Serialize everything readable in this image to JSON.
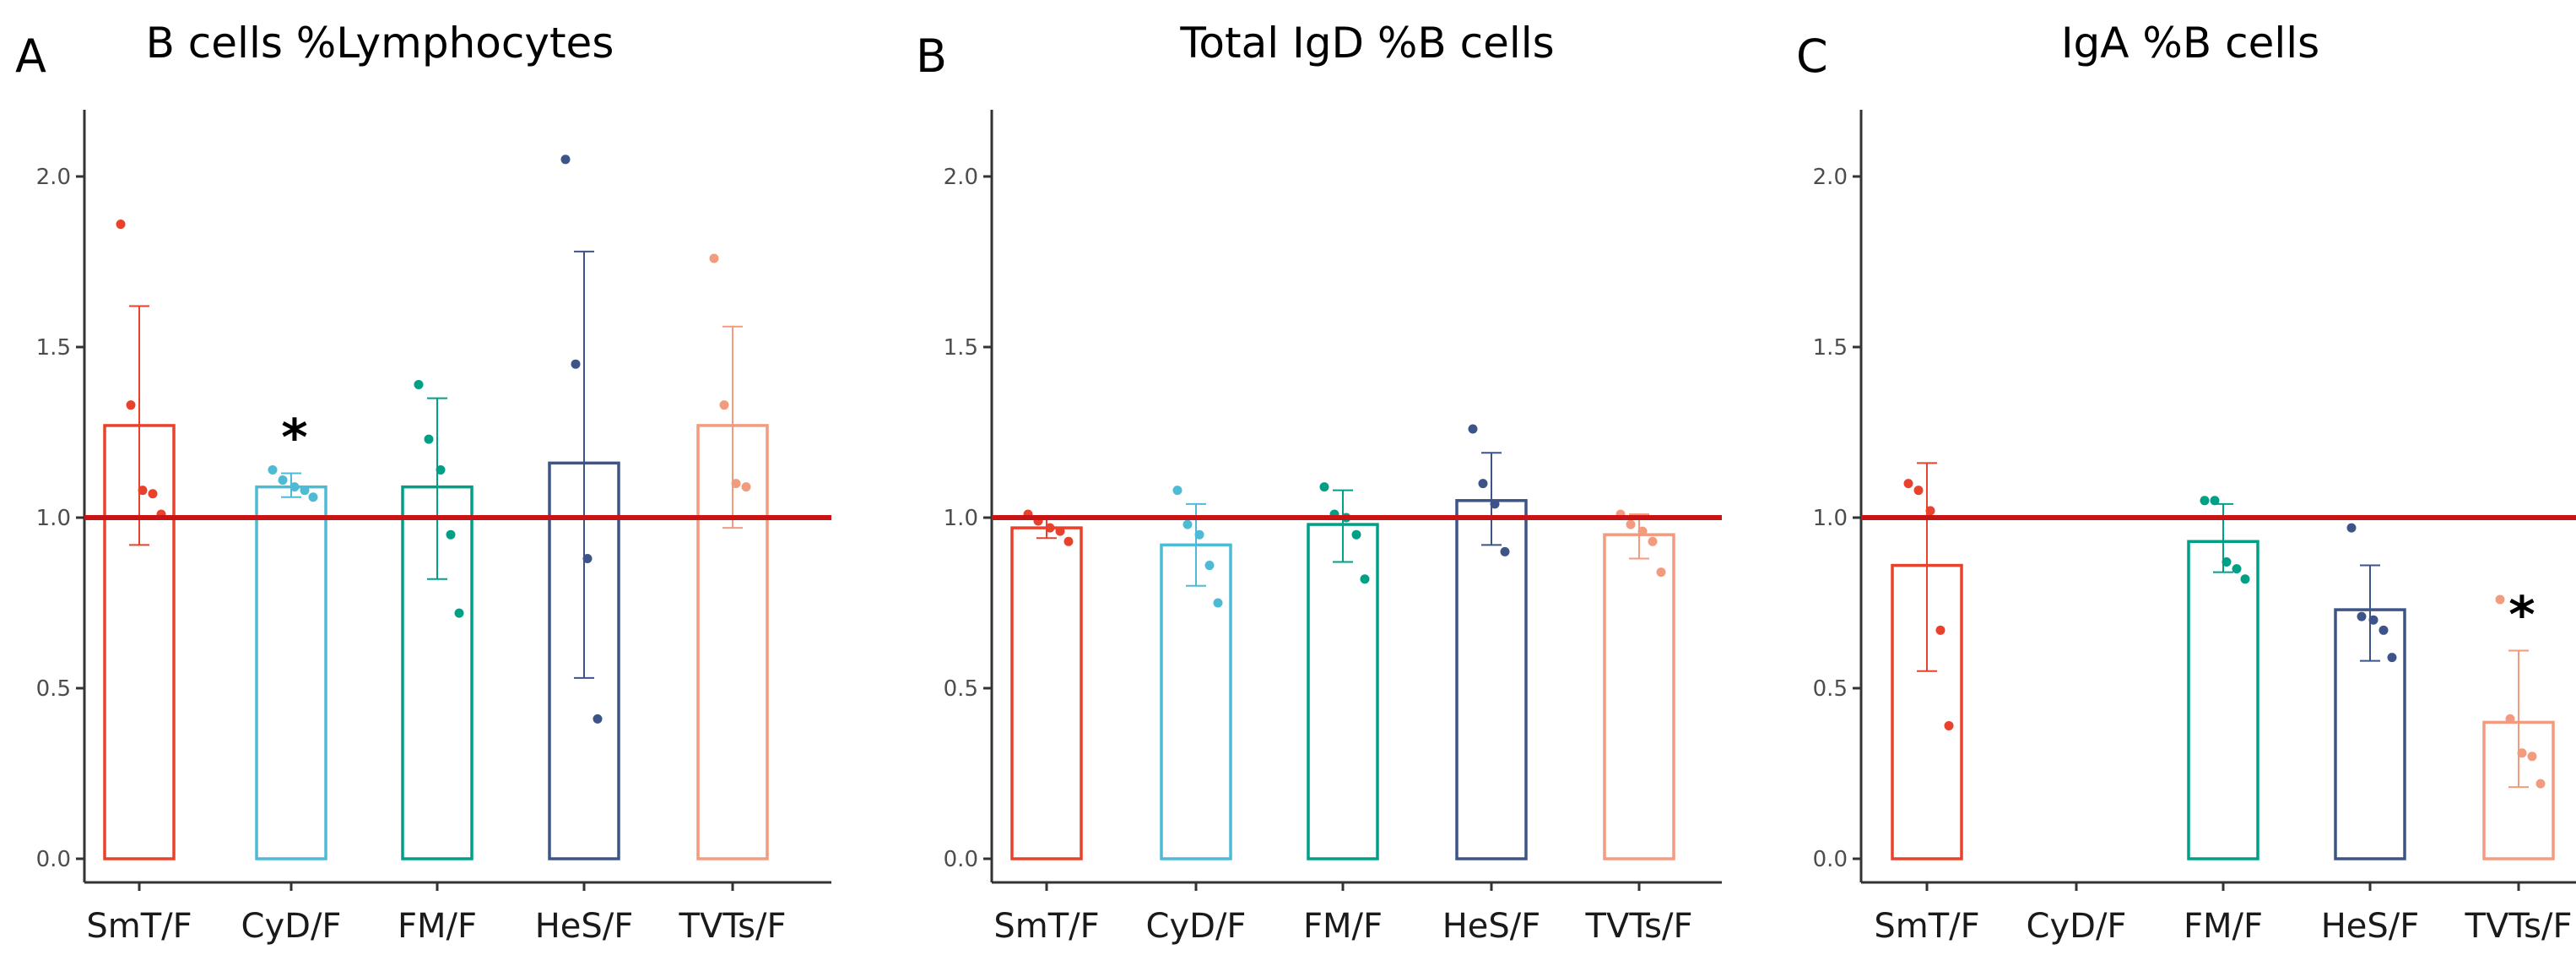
{
  "chart_data": [
    {
      "type": "bar",
      "panel_letter": "A",
      "title": "B cells %Lymphocytes",
      "xlabel": "",
      "ylabel": "",
      "ylim": [
        0,
        2.25
      ],
      "yticks": [
        "0.0",
        "0.5",
        "1.0",
        "1.5",
        "2.0"
      ],
      "reference_line": 1.0,
      "categories": [
        "SmT/F",
        "CyD/F",
        "FM/F",
        "HeS/F",
        "TVTs/F"
      ],
      "colors": [
        "#e8412c",
        "#4dbbd5",
        "#00a087",
        "#3c5488",
        "#f39b7f"
      ],
      "values": [
        1.27,
        1.09,
        1.09,
        1.16,
        1.27
      ],
      "error_low": [
        0.92,
        1.06,
        0.82,
        0.53,
        0.97
      ],
      "error_high": [
        1.62,
        1.13,
        1.35,
        1.78,
        1.56
      ],
      "points": [
        [
          1.86,
          1.33,
          1.08,
          1.07,
          1.01
        ],
        [
          1.14,
          1.11,
          1.09,
          1.08,
          1.06
        ],
        [
          1.39,
          1.23,
          1.14,
          0.95,
          0.72
        ],
        [
          2.05,
          1.45,
          0.88,
          0.41
        ],
        [
          1.76,
          1.33,
          1.1,
          1.09
        ]
      ],
      "significance": [
        "",
        "*",
        "",
        "",
        ""
      ]
    },
    {
      "type": "bar",
      "panel_letter": "B",
      "title": "Total IgD %B cells",
      "xlabel": "",
      "ylabel": "",
      "ylim": [
        0,
        2.25
      ],
      "yticks": [
        "0.0",
        "0.5",
        "1.0",
        "1.5",
        "2.0"
      ],
      "reference_line": 1.0,
      "categories": [
        "SmT/F",
        "CyD/F",
        "FM/F",
        "HeS/F",
        "TVTs/F"
      ],
      "colors": [
        "#e8412c",
        "#4dbbd5",
        "#00a087",
        "#3c5488",
        "#f39b7f"
      ],
      "values": [
        0.97,
        0.92,
        0.98,
        1.05,
        0.95
      ],
      "error_low": [
        0.94,
        0.8,
        0.87,
        0.92,
        0.88
      ],
      "error_high": [
        1.0,
        1.04,
        1.08,
        1.19,
        1.01
      ],
      "points": [
        [
          1.01,
          0.99,
          0.97,
          0.96,
          0.93
        ],
        [
          1.08,
          0.98,
          0.95,
          0.86,
          0.75
        ],
        [
          1.09,
          1.01,
          1.0,
          0.95,
          0.82
        ],
        [
          1.26,
          1.1,
          1.04,
          0.9
        ],
        [
          1.01,
          0.98,
          0.96,
          0.93,
          0.84
        ]
      ],
      "significance": [
        "",
        "",
        "",
        "",
        ""
      ]
    },
    {
      "type": "bar",
      "panel_letter": "C",
      "title": "IgA %B cells",
      "xlabel": "",
      "ylabel": "",
      "ylim": [
        0,
        2.25
      ],
      "yticks": [
        "0.0",
        "0.5",
        "1.0",
        "1.5",
        "2.0"
      ],
      "reference_line": 1.0,
      "categories": [
        "SmT/F",
        "CyD/F",
        "FM/F",
        "HeS/F",
        "TVTs/F"
      ],
      "colors": [
        "#e8412c",
        "#4dbbd5",
        "#00a087",
        "#3c5488",
        "#f39b7f"
      ],
      "values": [
        0.86,
        null,
        0.93,
        0.73,
        0.4
      ],
      "error_low": [
        0.55,
        null,
        0.84,
        0.58,
        0.21
      ],
      "error_high": [
        1.16,
        null,
        1.04,
        0.86,
        0.61
      ],
      "points": [
        [
          1.1,
          1.08,
          1.02,
          0.67,
          0.39
        ],
        [],
        [
          1.05,
          1.05,
          0.87,
          0.85,
          0.82
        ],
        [
          0.97,
          0.71,
          0.7,
          0.67,
          0.59
        ],
        [
          0.76,
          0.41,
          0.31,
          0.3,
          0.22
        ]
      ],
      "significance": [
        "",
        "",
        "",
        "",
        "*"
      ]
    }
  ]
}
